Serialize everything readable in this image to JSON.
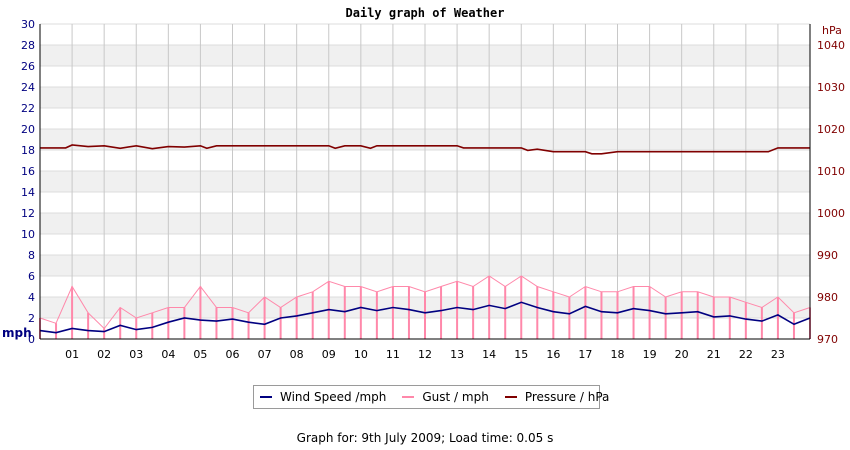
{
  "chart_data": {
    "type": "line",
    "title": "Daily graph of Weather",
    "left_axis": {
      "label": "mph",
      "ylim": [
        0,
        30
      ],
      "ticks": [
        "0",
        "2",
        "4",
        "6",
        "8",
        "10",
        "12",
        "14",
        "16",
        "18",
        "20",
        "22",
        "24",
        "26",
        "28",
        "30"
      ],
      "color": "#000080"
    },
    "right_axis": {
      "label": "hPa",
      "ylim": [
        970,
        1045
      ],
      "ticks": [
        "970",
        "980",
        "990",
        "1000",
        "1010",
        "1020",
        "1030",
        "1040"
      ],
      "color": "#800000"
    },
    "x_ticks": [
      "01",
      "02",
      "03",
      "04",
      "05",
      "06",
      "07",
      "08",
      "09",
      "10",
      "11",
      "12",
      "13",
      "14",
      "15",
      "16",
      "17",
      "18",
      "19",
      "20",
      "21",
      "22",
      "23"
    ],
    "xlim": [
      0,
      24
    ],
    "grid": true,
    "legend_position": "bottom",
    "series": [
      {
        "name": "Wind Speed /mph",
        "axis": "left",
        "color": "#000080",
        "x": [
          0,
          0.5,
          1,
          1.5,
          2,
          2.5,
          3,
          3.5,
          4,
          4.5,
          5,
          5.5,
          6,
          6.5,
          7,
          7.5,
          8,
          8.5,
          9,
          9.5,
          10,
          10.5,
          11,
          11.5,
          12,
          12.5,
          13,
          13.5,
          14,
          14.5,
          15,
          15.5,
          16,
          16.5,
          17,
          17.5,
          18,
          18.5,
          19,
          19.5,
          20,
          20.5,
          21,
          21.5,
          22,
          22.5,
          23,
          23.5,
          24
        ],
        "values": [
          0.8,
          0.6,
          1.0,
          0.8,
          0.7,
          1.3,
          0.9,
          1.1,
          1.6,
          2.0,
          1.8,
          1.7,
          1.9,
          1.6,
          1.4,
          2.0,
          2.2,
          2.5,
          2.8,
          2.6,
          3.0,
          2.7,
          3.0,
          2.8,
          2.5,
          2.7,
          3.0,
          2.8,
          3.2,
          2.9,
          3.5,
          3.0,
          2.6,
          2.4,
          3.1,
          2.6,
          2.5,
          2.9,
          2.7,
          2.4,
          2.5,
          2.6,
          2.1,
          2.2,
          1.9,
          1.7,
          2.3,
          1.4,
          2.0
        ]
      },
      {
        "name": "Gust / mph",
        "axis": "left",
        "color": "#ff88aa",
        "x": [
          0,
          0.5,
          1,
          1.5,
          2,
          2.5,
          3,
          3.5,
          4,
          4.5,
          5,
          5.5,
          6,
          6.5,
          7,
          7.5,
          8,
          8.5,
          9,
          9.5,
          10,
          10.5,
          11,
          11.5,
          12,
          12.5,
          13,
          13.5,
          14,
          14.5,
          15,
          15.5,
          16,
          16.5,
          17,
          17.5,
          18,
          18.5,
          19,
          19.5,
          20,
          20.5,
          21,
          21.5,
          22,
          22.5,
          23,
          23.5,
          24
        ],
        "values": [
          2.0,
          1.5,
          5.0,
          2.5,
          1.0,
          3.0,
          2.0,
          2.5,
          3.0,
          3.0,
          5.0,
          3.0,
          3.0,
          2.5,
          4.0,
          3.0,
          4.0,
          4.5,
          5.5,
          5.0,
          5.0,
          4.5,
          5.0,
          5.0,
          4.5,
          5.0,
          5.5,
          5.0,
          6.0,
          5.0,
          6.0,
          5.0,
          4.5,
          4.0,
          5.0,
          4.5,
          4.5,
          5.0,
          5.0,
          4.0,
          4.5,
          4.5,
          4.0,
          4.0,
          3.5,
          3.0,
          4.0,
          2.5,
          3.0
        ]
      },
      {
        "name": "Pressure / hPa",
        "axis": "right",
        "color": "#800000",
        "x": [
          0,
          0.8,
          1.0,
          1.5,
          2.0,
          2.5,
          3.0,
          3.5,
          4.0,
          4.5,
          5.0,
          5.2,
          5.5,
          6.0,
          8.0,
          9.0,
          9.2,
          9.5,
          10.0,
          10.3,
          10.5,
          11.0,
          12.0,
          13.0,
          13.2,
          14.0,
          15.0,
          15.2,
          15.5,
          16.0,
          17.0,
          17.2,
          17.5,
          18.0,
          19.0,
          20.0,
          21.0,
          22.0,
          22.7,
          23.0,
          24.0
        ],
        "values": [
          1015.5,
          1015.5,
          1016.2,
          1015.8,
          1016.0,
          1015.4,
          1016.0,
          1015.3,
          1015.8,
          1015.7,
          1016.0,
          1015.4,
          1016.0,
          1016.0,
          1016.0,
          1016.0,
          1015.4,
          1016.0,
          1016.0,
          1015.4,
          1016.0,
          1016.0,
          1016.0,
          1016.0,
          1015.5,
          1015.5,
          1015.5,
          1014.9,
          1015.2,
          1014.6,
          1014.6,
          1014.1,
          1014.1,
          1014.6,
          1014.6,
          1014.6,
          1014.6,
          1014.6,
          1014.6,
          1015.5,
          1015.5
        ]
      }
    ]
  },
  "legend": {
    "items": [
      {
        "label": "Wind Speed /mph",
        "color": "#000080"
      },
      {
        "label": "Gust / mph",
        "color": "#ff88aa"
      },
      {
        "label": "Pressure / hPa",
        "color": "#800000"
      }
    ]
  },
  "footer": {
    "text": "Graph for: 9th July 2009; Load time: 0.05 s"
  }
}
